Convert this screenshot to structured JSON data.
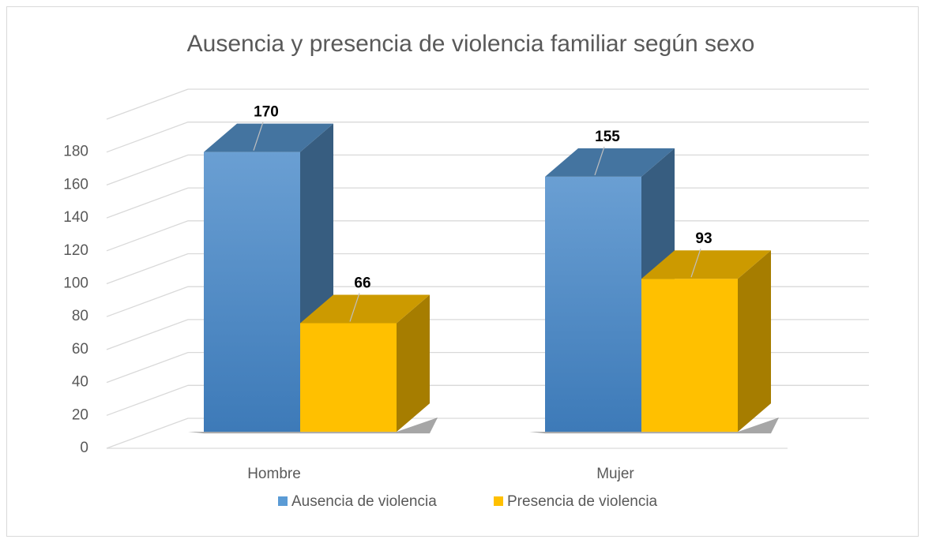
{
  "chart_data": {
    "type": "bar",
    "title": "Ausencia y presencia de violencia familiar según sexo",
    "categories": [
      "Hombre",
      "Mujer"
    ],
    "series": [
      {
        "name": "Ausencia de violencia",
        "color": "#5b9bd5",
        "values": [
          170,
          155
        ]
      },
      {
        "name": "Presencia de violencia",
        "color": "#ffc000",
        "values": [
          66,
          93
        ]
      }
    ],
    "ylim": [
      0,
      200
    ],
    "yticks": [
      0,
      20,
      40,
      60,
      80,
      100,
      120,
      140,
      160,
      180
    ],
    "grid": true,
    "legend": "bottom"
  }
}
